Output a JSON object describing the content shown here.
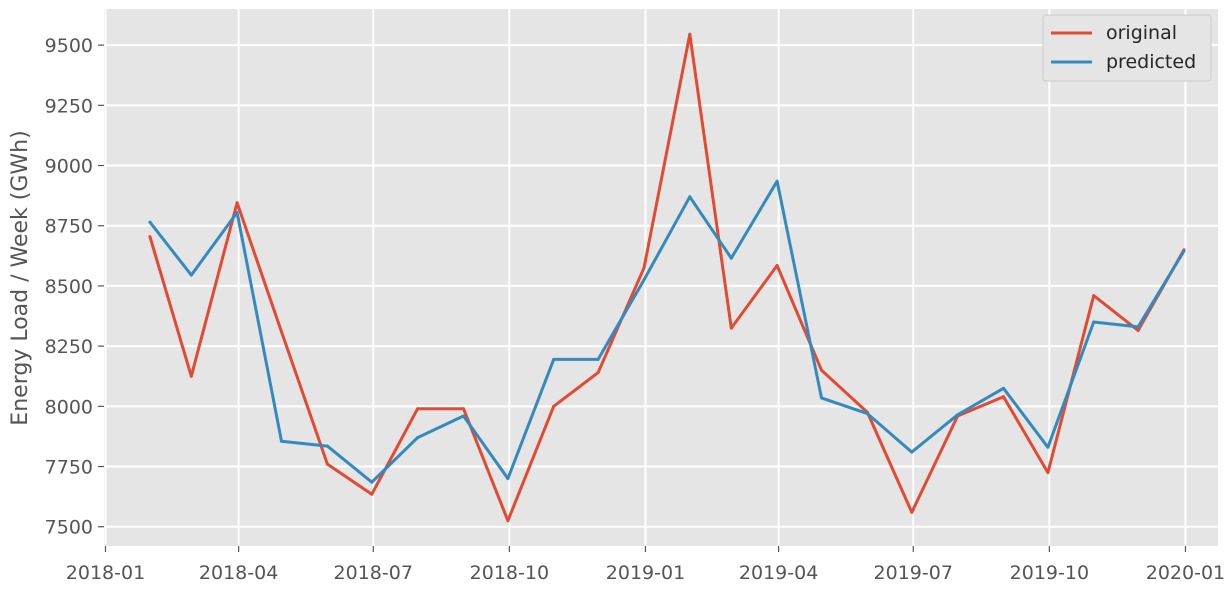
{
  "chart_data": {
    "type": "line",
    "title": "",
    "xlabel": "",
    "ylabel": "Energy Load / Week (GWh)",
    "x_type": "date",
    "xlim": [
      "2017-12-31",
      "2020-01-23"
    ],
    "ylim": [
      7420,
      9650
    ],
    "grid": true,
    "legend_position": "top-right",
    "x_ticks": [
      "2018-01-01",
      "2018-04-01",
      "2018-07-01",
      "2018-10-01",
      "2019-01-01",
      "2019-04-01",
      "2019-07-01",
      "2019-10-01",
      "2020-01-01"
    ],
    "x_tick_labels": [
      "2018-01",
      "2018-04",
      "2018-07",
      "2018-10",
      "2019-01",
      "2019-04",
      "2019-07",
      "2019-10",
      "2020-01"
    ],
    "y_ticks": [
      7500,
      7750,
      8000,
      8250,
      8500,
      8750,
      9000,
      9250,
      9500
    ],
    "y_tick_labels": [
      "7500",
      "7750",
      "8000",
      "8250",
      "8500",
      "8750",
      "9000",
      "9250",
      "9500"
    ],
    "x": [
      "2018-01-31",
      "2018-02-28",
      "2018-03-31",
      "2018-04-30",
      "2018-05-31",
      "2018-06-30",
      "2018-07-31",
      "2018-08-31",
      "2018-09-30",
      "2018-10-31",
      "2018-11-30",
      "2018-12-31",
      "2019-01-31",
      "2019-02-28",
      "2019-03-31",
      "2019-04-30",
      "2019-05-31",
      "2019-06-30",
      "2019-07-31",
      "2019-08-31",
      "2019-09-30",
      "2019-10-31",
      "2019-11-30",
      "2019-12-31"
    ],
    "series": [
      {
        "name": "original",
        "color": "#e24a33",
        "values": [
          8705,
          8125,
          8845,
          8310,
          7760,
          7635,
          7990,
          7990,
          7525,
          8000,
          8140,
          8575,
          9545,
          8325,
          8585,
          8150,
          7975,
          7560,
          7960,
          8040,
          7725,
          8460,
          8315,
          8650
        ]
      },
      {
        "name": "predicted",
        "color": "#348abd",
        "values": [
          8765,
          8545,
          8805,
          7855,
          7835,
          7685,
          7870,
          7960,
          7700,
          8195,
          8195,
          8525,
          8870,
          8615,
          8935,
          8035,
          7970,
          7810,
          7965,
          8075,
          7830,
          8350,
          8330,
          8645
        ]
      }
    ]
  }
}
